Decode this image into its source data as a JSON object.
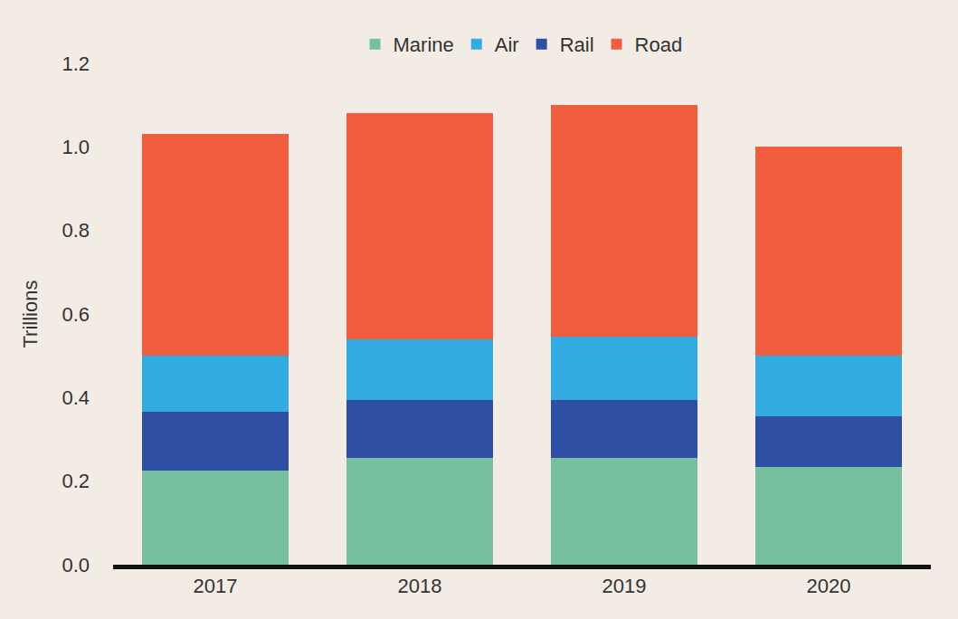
{
  "chart_data": {
    "type": "bar",
    "stacked": true,
    "y_label": "Trillions",
    "categories": [
      "2017",
      "2018",
      "2019",
      "2020"
    ],
    "series": [
      {
        "name": "Marine",
        "color": "#76c0a0",
        "values": [
          0.225,
          0.255,
          0.255,
          0.235
        ]
      },
      {
        "name": "Rail",
        "color": "#2f4fa4",
        "values": [
          0.14,
          0.14,
          0.14,
          0.12
        ]
      },
      {
        "name": "Air",
        "color": "#31abe2",
        "values": [
          0.135,
          0.145,
          0.15,
          0.145
        ]
      },
      {
        "name": "Road",
        "color": "#f15e3e",
        "values": [
          0.53,
          0.54,
          0.555,
          0.5
        ]
      }
    ],
    "legend_order": [
      "Marine",
      "Air",
      "Rail",
      "Road"
    ],
    "legend": "top",
    "grid": false,
    "ylim": [
      0,
      1.2
    ],
    "yticks": [
      {
        "value": 0,
        "label": "0.0"
      },
      0.2,
      0.4,
      0.6,
      0.8,
      {
        "value": 1,
        "label": "1.0"
      },
      1.2
    ]
  }
}
